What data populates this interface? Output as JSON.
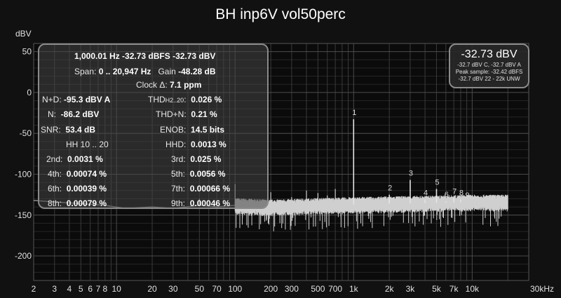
{
  "chart_data": {
    "type": "line",
    "title": "BH inp6V vol50perc",
    "ylabel": "dBV",
    "xlabel": "",
    "xscale": "log",
    "xlim": [
      2,
      30000
    ],
    "ylim": [
      -230,
      60
    ],
    "y_ticks": [
      50,
      0,
      -50,
      -100,
      -150,
      -200
    ],
    "x_ticks": [
      {
        "v": 2,
        "label": "2"
      },
      {
        "v": 3,
        "label": "3"
      },
      {
        "v": 4,
        "label": "4"
      },
      {
        "v": 5,
        "label": "5"
      },
      {
        "v": 6,
        "label": "6"
      },
      {
        "v": 7,
        "label": "7"
      },
      {
        "v": 8,
        "label": "8"
      },
      {
        "v": 10,
        "label": "10"
      },
      {
        "v": 20,
        "label": "20"
      },
      {
        "v": 30,
        "label": "30"
      },
      {
        "v": 50,
        "label": "50"
      },
      {
        "v": 70,
        "label": "70"
      },
      {
        "v": 100,
        "label": "100"
      },
      {
        "v": 200,
        "label": "200"
      },
      {
        "v": 300,
        "label": "300"
      },
      {
        "v": 500,
        "label": "500"
      },
      {
        "v": 700,
        "label": "700"
      },
      {
        "v": 1000,
        "label": "1k"
      },
      {
        "v": 2000,
        "label": "2k"
      },
      {
        "v": 3000,
        "label": "3k"
      },
      {
        "v": 5000,
        "label": "5k"
      },
      {
        "v": 7000,
        "label": "7k"
      },
      {
        "v": 10000,
        "label": "10k"
      },
      {
        "v": 30000,
        "label": "30kHz"
      }
    ],
    "noise_floor": [
      {
        "f": 100,
        "db": -138
      },
      {
        "f": 200,
        "db": -140
      },
      {
        "f": 500,
        "db": -138
      },
      {
        "f": 1000,
        "db": -137
      },
      {
        "f": 2000,
        "db": -136
      },
      {
        "f": 5000,
        "db": -135
      },
      {
        "f": 10000,
        "db": -134
      },
      {
        "f": 20000,
        "db": -134
      }
    ],
    "low_freq_trace": [
      {
        "f": 2,
        "db": -132
      },
      {
        "f": 3,
        "db": -134
      },
      {
        "f": 5,
        "db": -136
      },
      {
        "f": 8,
        "db": -138
      },
      {
        "f": 12,
        "db": -142
      },
      {
        "f": 20,
        "db": -140
      },
      {
        "f": 30,
        "db": -142
      },
      {
        "f": 50,
        "db": -138
      },
      {
        "f": 70,
        "db": -140
      },
      {
        "f": 100,
        "db": -138
      }
    ],
    "spur_peaks": [
      {
        "f": 50,
        "db": -130
      },
      {
        "f": 100,
        "db": -112
      },
      {
        "f": 150,
        "db": -135
      },
      {
        "f": 200,
        "db": -122
      },
      {
        "f": 250,
        "db": -132
      },
      {
        "f": 300,
        "db": -128
      },
      {
        "f": 400,
        "db": -120
      },
      {
        "f": 500,
        "db": -123
      },
      {
        "f": 600,
        "db": -126
      },
      {
        "f": 700,
        "db": -118
      }
    ],
    "harmonics": [
      {
        "label": "1",
        "f": 1000,
        "db": -32.7
      },
      {
        "label": "2",
        "f": 2000,
        "db": -125
      },
      {
        "label": "3",
        "f": 3000,
        "db": -107
      },
      {
        "label": "4",
        "f": 4000,
        "db": -131
      },
      {
        "label": "5",
        "f": 5000,
        "db": -118
      },
      {
        "label": "6",
        "f": 6000,
        "db": -133
      },
      {
        "label": "7",
        "f": 7000,
        "db": -129
      },
      {
        "label": "8",
        "f": 8000,
        "db": -131
      },
      {
        "label": "9",
        "f": 9000,
        "db": -134
      }
    ]
  },
  "stats": {
    "fundamental": "1,000.01 Hz  -32.73 dBFS  -32.73 dBV",
    "span_label": "Span:",
    "span_value": "0 .. 20,947 Hz",
    "gain_label": "Gain",
    "gain_value": "-48.28 dB",
    "clock_label": "Clock Δ:",
    "clock_value": "7.1 ppm",
    "nd_label": "N+D:",
    "nd_value": "-95.3 dBV A",
    "thd_label_main": "THD",
    "thd_label_sub": "H2..20",
    "thd_label_end": ":",
    "thd_value": "0.026 %",
    "n_label": "N:",
    "n_value": "-86.2 dBV",
    "thdn_label": "THD+N:",
    "thdn_value": "0.21 %",
    "snr_label": "SNR:",
    "snr_value": "53.4 dB",
    "enob_label": "ENOB:",
    "enob_value": "14.5 bits",
    "hh_label": "HH 10 .. 20",
    "hhd_label": "HHD:",
    "hhd_value": "0.0013 %",
    "h2_label": "2nd:",
    "h2_value": "0.0031 %",
    "h3_label": "3rd:",
    "h3_value": "0.025 %",
    "h4_label": "4th:",
    "h4_value": "0.00074 %",
    "h5_label": "5th:",
    "h5_value": "0.0056 %",
    "h6_label": "6th:",
    "h6_value": "0.00039 %",
    "h7_label": "7th:",
    "h7_value": "0.00066 %",
    "h8_label": "8th:",
    "h8_value": "0.00079 %",
    "h9_label": "9th:",
    "h9_value": "0.00046 %"
  },
  "level": {
    "main": "-32.73 dBV",
    "line1": "-32.7 dBV C, -32.7 dBV A",
    "line2": "Peak sample: -32.42 dBFS",
    "line3": "-32.7 dBV 22 - 22k UNW"
  },
  "colors": {
    "background": "#111111",
    "trace": "#cfcfcf",
    "grid": "#3a3a3a"
  }
}
